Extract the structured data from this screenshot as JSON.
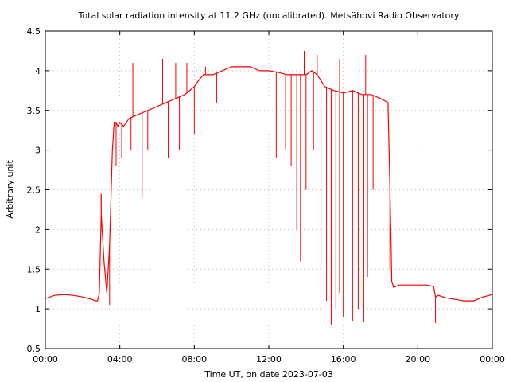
{
  "chart_data": {
    "type": "line",
    "title": "Total solar radiation intensity at 11.2 GHz (uncalibrated). Metsähovi Radio Observatory",
    "xlabel": "Time UT, on date 2023-07-03",
    "ylabel": "Arbitrary unit",
    "xlim": [
      0,
      24
    ],
    "ylim": [
      0.5,
      4.5
    ],
    "grid": true,
    "x_ticks": [
      {
        "value": 0,
        "label": "00:00"
      },
      {
        "value": 4,
        "label": "04:00"
      },
      {
        "value": 8,
        "label": "08:00"
      },
      {
        "value": 12,
        "label": "12:00"
      },
      {
        "value": 16,
        "label": "16:00"
      },
      {
        "value": 20,
        "label": "20:00"
      },
      {
        "value": 24,
        "label": "00:00"
      }
    ],
    "y_ticks": [
      {
        "value": 0.5,
        "label": "0.5"
      },
      {
        "value": 1,
        "label": "1"
      },
      {
        "value": 1.5,
        "label": "1.5"
      },
      {
        "value": 2,
        "label": "2"
      },
      {
        "value": 2.5,
        "label": "2.5"
      },
      {
        "value": 3,
        "label": "3"
      },
      {
        "value": 3.5,
        "label": "3.5"
      },
      {
        "value": 4,
        "label": "4"
      },
      {
        "value": 4.5,
        "label": "4.5"
      }
    ],
    "series": [
      {
        "color": "#ff0000",
        "x": [
          0,
          0.5,
          1.0,
          1.5,
          2.0,
          2.5,
          2.7,
          2.8,
          2.9,
          3.0,
          3.05,
          3.15,
          3.3,
          3.45,
          3.6,
          3.7,
          3.8,
          3.9,
          4.0,
          4.2,
          4.5,
          5.0,
          5.5,
          6.0,
          6.5,
          7.0,
          7.5,
          8.0,
          8.3,
          8.5,
          9.0,
          9.5,
          10.0,
          10.5,
          11.0,
          11.5,
          12.0,
          12.5,
          13.0,
          13.5,
          14.0,
          14.3,
          14.6,
          15.0,
          15.5,
          16.0,
          16.5,
          17.0,
          17.5,
          18.0,
          18.4,
          18.55,
          18.6,
          18.7,
          19.0,
          19.5,
          20.0,
          20.5,
          20.85,
          20.95,
          21.1,
          21.5,
          22.0,
          22.5,
          23.0,
          23.5,
          24.0
        ],
        "values": [
          1.13,
          1.17,
          1.18,
          1.17,
          1.15,
          1.12,
          1.1,
          1.1,
          1.2,
          2.2,
          2.0,
          1.6,
          1.2,
          1.8,
          3.0,
          3.35,
          3.35,
          3.3,
          3.35,
          3.3,
          3.4,
          3.45,
          3.5,
          3.55,
          3.6,
          3.65,
          3.7,
          3.8,
          3.9,
          3.95,
          3.95,
          4.0,
          4.05,
          4.05,
          4.05,
          4.0,
          4.0,
          3.98,
          3.95,
          3.95,
          3.95,
          4.0,
          3.95,
          3.8,
          3.75,
          3.72,
          3.75,
          3.7,
          3.7,
          3.65,
          3.6,
          2.0,
          1.35,
          1.27,
          1.3,
          1.3,
          1.3,
          1.3,
          1.28,
          1.15,
          1.17,
          1.14,
          1.12,
          1.1,
          1.1,
          1.15,
          1.18
        ]
      }
    ],
    "dips": [
      {
        "x": 3.0,
        "to": 2.45
      },
      {
        "x": 3.45,
        "to": 1.05
      },
      {
        "x": 3.8,
        "to": 2.8
      },
      {
        "x": 4.1,
        "to": 2.9
      },
      {
        "x": 4.6,
        "to": 3.0
      },
      {
        "x": 5.2,
        "to": 2.4
      },
      {
        "x": 5.5,
        "to": 3.0
      },
      {
        "x": 6.0,
        "to": 2.7
      },
      {
        "x": 6.6,
        "to": 2.9
      },
      {
        "x": 7.2,
        "to": 3.0
      },
      {
        "x": 8.0,
        "to": 3.2
      },
      {
        "x": 9.2,
        "to": 3.6
      },
      {
        "x": 12.4,
        "to": 2.9
      },
      {
        "x": 12.9,
        "to": 3.0
      },
      {
        "x": 13.2,
        "to": 2.8
      },
      {
        "x": 13.5,
        "to": 2.0
      },
      {
        "x": 13.7,
        "to": 1.6
      },
      {
        "x": 14.0,
        "to": 2.5
      },
      {
        "x": 14.4,
        "to": 3.0
      },
      {
        "x": 14.8,
        "to": 1.5
      },
      {
        "x": 15.1,
        "to": 1.1
      },
      {
        "x": 15.35,
        "to": 0.8
      },
      {
        "x": 15.6,
        "to": 1.0
      },
      {
        "x": 15.8,
        "to": 1.2
      },
      {
        "x": 16.0,
        "to": 0.9
      },
      {
        "x": 16.25,
        "to": 1.05
      },
      {
        "x": 16.5,
        "to": 0.85
      },
      {
        "x": 16.8,
        "to": 1.0
      },
      {
        "x": 17.1,
        "to": 0.83
      },
      {
        "x": 17.3,
        "to": 1.4
      },
      {
        "x": 17.6,
        "to": 2.5
      },
      {
        "x": 18.5,
        "to": 1.5
      },
      {
        "x": 20.95,
        "to": 0.82
      }
    ],
    "spikes": [
      {
        "x": 3.0,
        "to": 2.45
      },
      {
        "x": 4.7,
        "to": 4.1
      },
      {
        "x": 6.3,
        "to": 4.15
      },
      {
        "x": 7.0,
        "to": 4.1
      },
      {
        "x": 7.6,
        "to": 4.1
      },
      {
        "x": 8.6,
        "to": 4.05
      },
      {
        "x": 13.9,
        "to": 4.25
      },
      {
        "x": 14.6,
        "to": 4.2
      },
      {
        "x": 15.8,
        "to": 4.15
      },
      {
        "x": 17.2,
        "to": 4.2
      }
    ]
  }
}
